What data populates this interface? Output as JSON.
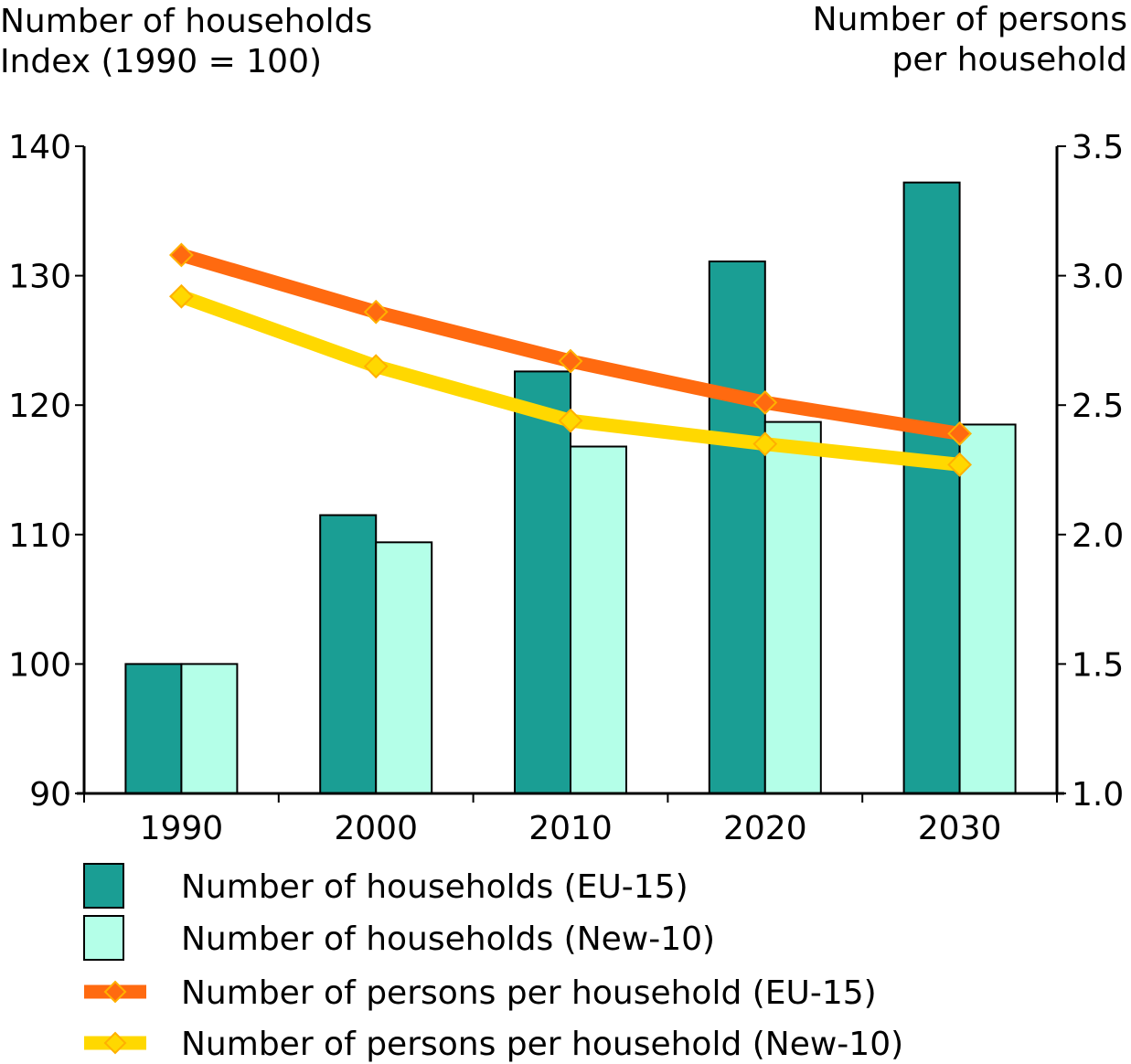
{
  "chart_data": {
    "type": "bar",
    "categories": [
      "1990",
      "2000",
      "2010",
      "2020",
      "2030"
    ],
    "left_axis": {
      "label_line1": "Number of households",
      "label_line2": "Index (1990 = 100)",
      "range": [
        90,
        140
      ],
      "ticks": [
        "90",
        "100",
        "110",
        "120",
        "130",
        "140"
      ]
    },
    "right_axis": {
      "label_line1": "Number of persons",
      "label_line2": "per household",
      "range": [
        1.0,
        3.5
      ],
      "ticks": [
        "1.0",
        "1.5",
        "2.0",
        "2.5",
        "3.0",
        "3.5"
      ]
    },
    "series": [
      {
        "name": "Number of households (EU-15)",
        "kind": "bar",
        "axis": "left",
        "color": "#1a9e94",
        "values": [
          100,
          111.5,
          122.6,
          131.1,
          137.2
        ]
      },
      {
        "name": "Number of households (New-10)",
        "kind": "bar",
        "axis": "left",
        "color": "#b4ffe8",
        "values": [
          100,
          109.4,
          116.8,
          118.7,
          118.5
        ]
      },
      {
        "name": "Number of persons per household (EU-15)",
        "kind": "line",
        "axis": "right",
        "color": "#ff6a10",
        "values": [
          3.08,
          2.86,
          2.67,
          2.51,
          2.39
        ]
      },
      {
        "name": "Number of persons per household (New-10)",
        "kind": "line",
        "axis": "right",
        "color": "#ffd800",
        "values": [
          2.92,
          2.65,
          2.44,
          2.35,
          2.27
        ]
      }
    ],
    "legend_position": "bottom-left",
    "grid": false
  }
}
